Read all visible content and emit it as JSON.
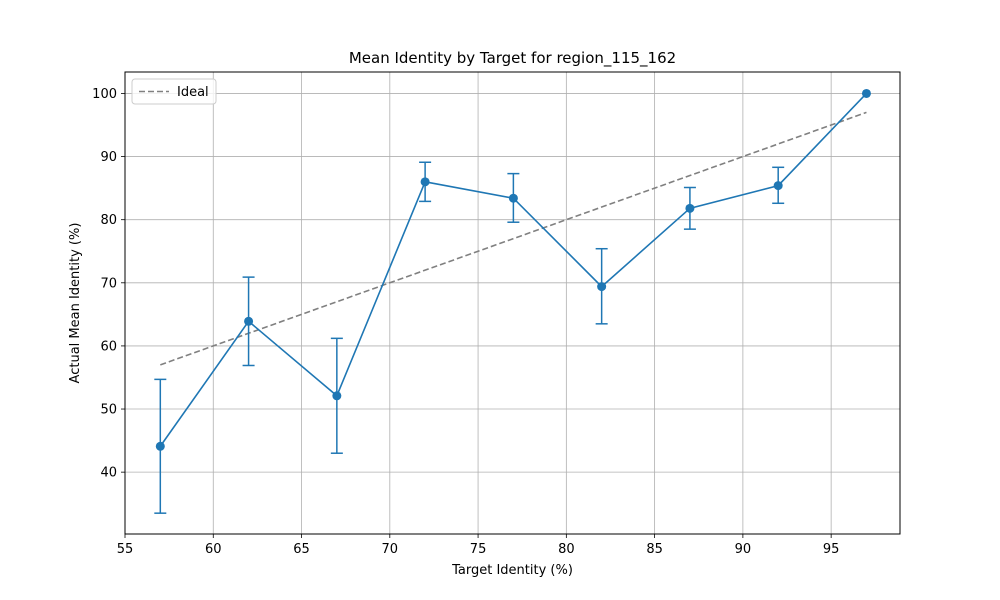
{
  "chart_data": {
    "type": "line",
    "title": "Mean Identity by Target for region_115_162",
    "xlabel": "Target Identity (%)",
    "ylabel": "Actual Mean Identity (%)",
    "xlim": [
      55,
      89.6
    ],
    "ylim": [
      30.2,
      103.4
    ],
    "xticks": [
      55,
      60,
      65,
      70,
      75,
      80,
      85,
      90,
      95
    ],
    "yticks": [
      40,
      50,
      60,
      70,
      80,
      90,
      100
    ],
    "grid": true,
    "legend": {
      "placement": "top-left",
      "entries": [
        "Ideal"
      ]
    },
    "series": [
      {
        "kind": "errorbar-line",
        "color": "#1f77b4",
        "x": [
          57,
          62,
          67,
          72,
          77,
          82,
          87,
          92,
          97
        ],
        "y": [
          44.1,
          63.9,
          52.1,
          86.0,
          83.4,
          69.4,
          81.8,
          85.4,
          100.0
        ],
        "yerr_low": [
          33.5,
          56.9,
          43.0,
          82.9,
          79.6,
          63.5,
          78.5,
          82.6,
          100.0
        ],
        "yerr_high": [
          54.7,
          70.9,
          61.2,
          89.1,
          87.3,
          75.4,
          85.1,
          88.3,
          100.0
        ]
      },
      {
        "name": "Ideal",
        "kind": "dashed-line",
        "color": "#808080",
        "x": [
          57,
          97
        ],
        "y": [
          57,
          97
        ]
      }
    ]
  }
}
